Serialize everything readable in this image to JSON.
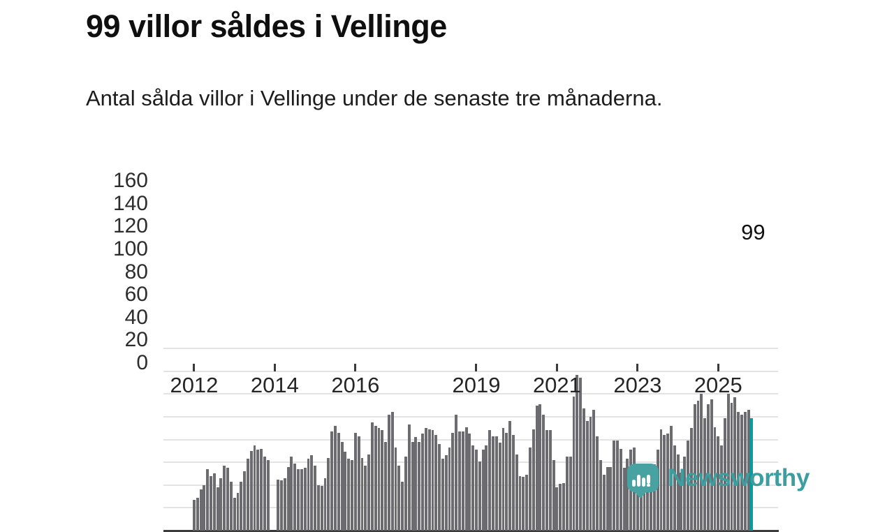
{
  "header": {
    "title": "99 villor såldes i Vellinge",
    "subtitle": "Antal sålda villor i Vellinge under de senaste tre månaderna."
  },
  "colors": {
    "bar": "#6b6b70",
    "highlight": "#009fa1",
    "axis": "#3b3b3b",
    "grid": "#e3e3e3",
    "logo": "#49a2a2"
  },
  "chart_data": {
    "type": "bar",
    "title": "99 villor såldes i Vellinge",
    "subtitle": "Antal sålda villor i Vellinge under de senaste tre månaderna.",
    "frequency": "monthly",
    "start_month": "2012-01",
    "end_month": "2025-11",
    "ylim": [
      0,
      160
    ],
    "y_ticks": [
      0,
      20,
      40,
      60,
      80,
      100,
      120,
      140,
      160
    ],
    "x_tick_years": [
      2012,
      2014,
      2016,
      2019,
      2021,
      2023,
      2025
    ],
    "grid": "horizontal",
    "values": [
      27,
      29,
      36,
      40,
      54,
      48,
      50,
      38,
      46,
      57,
      55,
      43,
      29,
      33,
      43,
      52,
      63,
      70,
      75,
      71,
      72,
      65,
      62,
      null,
      null,
      45,
      44,
      46,
      56,
      65,
      59,
      54,
      54,
      55,
      63,
      66,
      57,
      40,
      39,
      46,
      64,
      87,
      92,
      86,
      78,
      69,
      63,
      62,
      86,
      83,
      64,
      57,
      67,
      95,
      92,
      90,
      88,
      78,
      102,
      104,
      73,
      57,
      43,
      65,
      93,
      78,
      82,
      78,
      85,
      90,
      89,
      88,
      84,
      76,
      63,
      66,
      73,
      86,
      102,
      87,
      87,
      91,
      85,
      75,
      71,
      61,
      71,
      75,
      88,
      83,
      83,
      77,
      90,
      86,
      96,
      84,
      67,
      48,
      47,
      49,
      73,
      89,
      110,
      111,
      102,
      88,
      88,
      62,
      38,
      41,
      42,
      65,
      65,
      118,
      137,
      134,
      107,
      96,
      100,
      106,
      83,
      62,
      49,
      56,
      56,
      79,
      79,
      72,
      55,
      63,
      71,
      73,
      54,
      46,
      47,
      46,
      49,
      58,
      71,
      89,
      84,
      85,
      92,
      75,
      67,
      51,
      65,
      79,
      90,
      111,
      114,
      120,
      99,
      111,
      115,
      91,
      83,
      75,
      99,
      120,
      112,
      117,
      104,
      102,
      104,
      106,
      99
    ],
    "highlight": {
      "index": 166,
      "label": "99"
    }
  },
  "logo": {
    "text": "Newsworthy",
    "icon": "speech-bubble-chart-icon"
  }
}
